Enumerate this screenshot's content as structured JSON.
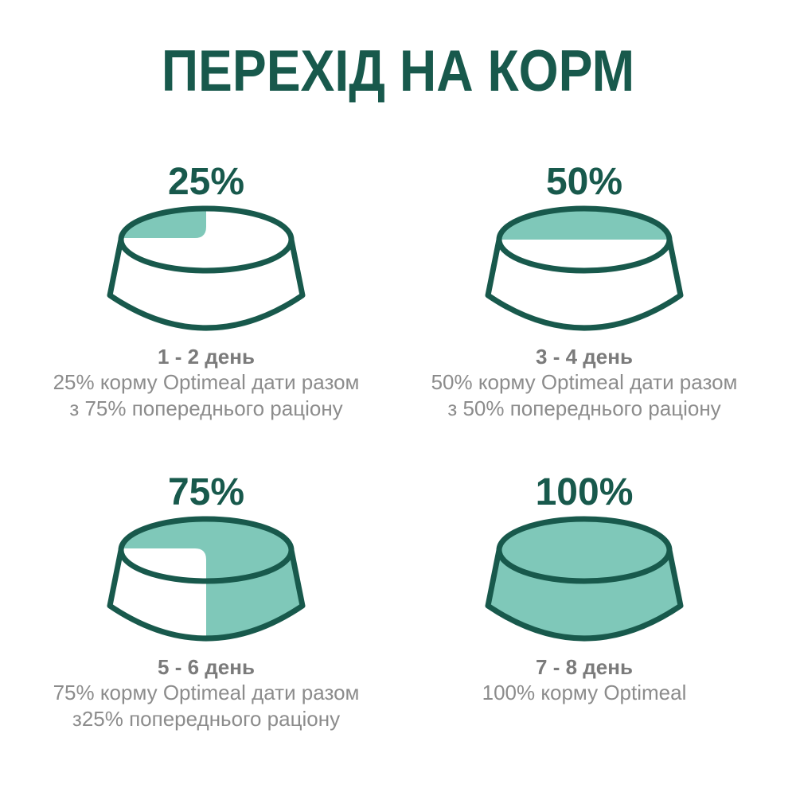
{
  "title": "ПЕРЕХІД НА КОРМ",
  "colors": {
    "title": "#18594C",
    "outline": "#18594C",
    "fill": "#7FC8B9",
    "day_text": "#7B7B7B",
    "body_text": "#8C8C8C",
    "background": "#FFFFFF"
  },
  "steps": [
    {
      "percent_label": "25%",
      "fill_percent": 25,
      "day": "1 - 2 день",
      "line1": "25% корму Optimeal дати разом",
      "line2": "з 75% попереднього раціону"
    },
    {
      "percent_label": "50%",
      "fill_percent": 50,
      "day": "3 - 4 день",
      "line1": "50% корму Optimeal дати разом",
      "line2": "з 50% попереднього раціону"
    },
    {
      "percent_label": "75%",
      "fill_percent": 75,
      "day": "5 - 6 день",
      "line1": "75% корму Optimeal дати разом",
      "line2": "з25% попереднього раціону"
    },
    {
      "percent_label": "100%",
      "fill_percent": 100,
      "day": "7 - 8 день",
      "line1": "100% корму Optimeal",
      "line2": ""
    }
  ]
}
